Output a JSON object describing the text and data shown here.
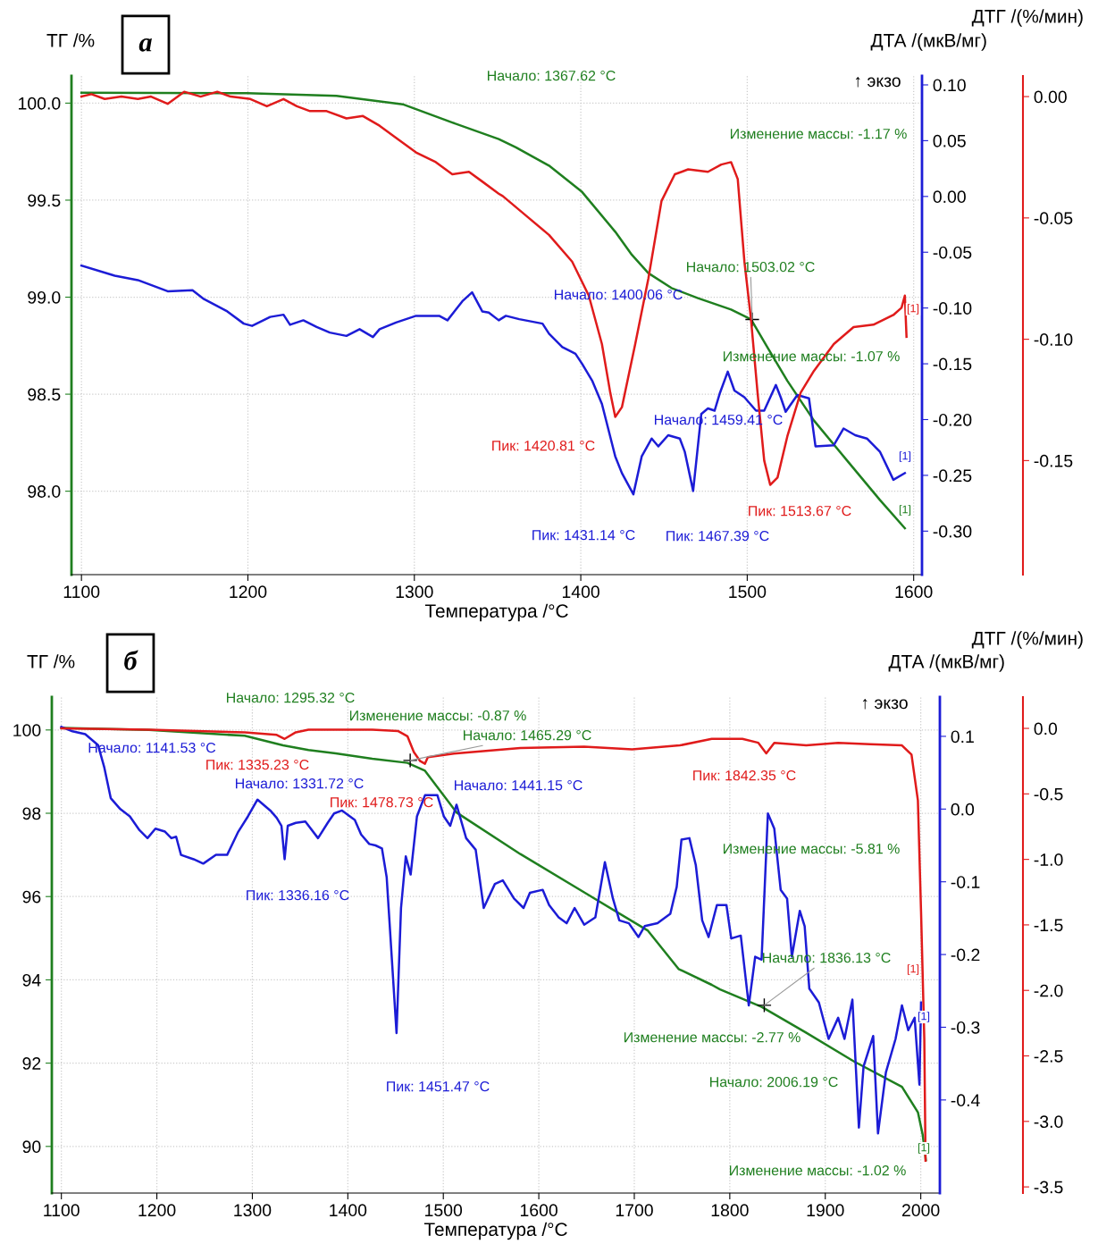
{
  "chart_data": [
    {
      "type": "line",
      "title": "а",
      "xlabel": "Температура /°C",
      "ylabel": "ТГ /%",
      "y2label": "ДТА /(мкВ/мг)",
      "y3label": "ДТГ /(%/мин)",
      "grid": true,
      "xlim": [
        1094,
        1605
      ],
      "xticks": [
        1100,
        1200,
        1300,
        1400,
        1500,
        1600
      ],
      "ylim": [
        97.57,
        100.14
      ],
      "yticks": [
        {
          "value": 98,
          "label": "98.0"
        },
        {
          "value": 98.5,
          "label": "98.5"
        },
        {
          "value": 99,
          "label": "99.0"
        },
        {
          "value": 99.5,
          "label": "99.5"
        },
        {
          "value": 100,
          "label": "100.0"
        }
      ],
      "y2lim": [
        -0.339,
        0.108
      ],
      "y2ticks": [
        {
          "value": -0.3,
          "label": "-0.30"
        },
        {
          "value": -0.25,
          "label": "-0.25"
        },
        {
          "value": -0.2,
          "label": "-0.20"
        },
        {
          "value": -0.15,
          "label": "-0.15"
        },
        {
          "value": -0.1,
          "label": "-0.10"
        },
        {
          "value": -0.05,
          "label": "-0.05"
        },
        {
          "value": 0,
          "label": "0.00"
        },
        {
          "value": 0.05,
          "label": "0.05"
        },
        {
          "value": 0.1,
          "label": "0.10"
        }
      ],
      "y3lim": [
        -0.197,
        0.0085
      ],
      "y3ticks": [
        {
          "value": -0.15,
          "label": "-0.15"
        },
        {
          "value": -0.1,
          "label": "-0.10"
        },
        {
          "value": -0.05,
          "label": "-0.05"
        },
        {
          "value": 0,
          "label": "0.00"
        }
      ],
      "series": [
        {
          "color": "#1f7f1f",
          "x": [
            1100,
            1199.5,
            1253.2,
            1293.0,
            1322.8,
            1350.7,
            1361.0,
            1380.9,
            1400.8,
            1420.7,
            1430.7,
            1440.6,
            1454.5,
            1470.4,
            1490.3,
            1502.3,
            1512.2,
            1524.1,
            1540.1,
            1559.9,
            1579.8,
            1594.7
          ],
          "values": [
            100.054,
            100.051,
            100.037,
            99.994,
            99.9,
            99.815,
            99.772,
            99.678,
            99.542,
            99.337,
            99.218,
            99.124,
            99.047,
            98.995,
            98.936,
            98.885,
            98.74,
            98.569,
            98.364,
            98.159,
            97.954,
            97.809
          ]
        },
        {
          "color": "#1c1cd6",
          "axis": "y2",
          "x": [
            1100,
            1120,
            1133.9,
            1151.8,
            1166.7,
            1173.6,
            1187.6,
            1197.5,
            1202.5,
            1213.4,
            1221.4,
            1225.3,
            1233.3,
            1241.3,
            1249.2,
            1259.2,
            1267.1,
            1275.1,
            1279.1,
            1289.0,
            1301.0,
            1314.9,
            1319.9,
            1328.8,
            1334.7,
            1340.8,
            1344.7,
            1350.7,
            1355.0,
            1363.0,
            1377.0,
            1380.9,
            1388.9,
            1392.9,
            1396.8,
            1400.8,
            1406.8,
            1412.7,
            1420.7,
            1424.7,
            1431.6,
            1436.6,
            1442.6,
            1446.6,
            1452.5,
            1459.5,
            1462.5,
            1467.5,
            1472.4,
            1476.4,
            1480.4,
            1483.4,
            1488.3,
            1492.3,
            1498.3,
            1505.3,
            1510.2,
            1517.2,
            1520.1,
            1523.1,
            1530.1,
            1537.1,
            1541.0,
            1552.0,
            1557.9,
            1564.9,
            1571.9,
            1579.8,
            1587.8,
            1594.7
          ],
          "values": [
            -0.062,
            -0.071,
            -0.075,
            -0.085,
            -0.084,
            -0.092,
            -0.103,
            -0.114,
            -0.116,
            -0.108,
            -0.106,
            -0.115,
            -0.111,
            -0.117,
            -0.122,
            -0.125,
            -0.119,
            -0.126,
            -0.119,
            -0.113,
            -0.107,
            -0.107,
            -0.111,
            -0.094,
            -0.086,
            -0.103,
            -0.104,
            -0.111,
            -0.107,
            -0.11,
            -0.114,
            -0.123,
            -0.135,
            -0.138,
            -0.141,
            -0.15,
            -0.165,
            -0.186,
            -0.233,
            -0.248,
            -0.267,
            -0.233,
            -0.217,
            -0.224,
            -0.214,
            -0.217,
            -0.229,
            -0.264,
            -0.195,
            -0.19,
            -0.192,
            -0.177,
            -0.157,
            -0.174,
            -0.18,
            -0.192,
            -0.192,
            -0.169,
            -0.18,
            -0.193,
            -0.178,
            -0.181,
            -0.224,
            -0.223,
            -0.208,
            -0.214,
            -0.217,
            -0.229,
            -0.254,
            -0.248
          ]
        },
        {
          "color": "#e01b1b",
          "axis": "y3",
          "x": [
            1100,
            1106.0,
            1114.0,
            1124.0,
            1133.9,
            1141.8,
            1151.8,
            1161.7,
            1171.6,
            1181.6,
            1189.6,
            1201.5,
            1211.4,
            1221.4,
            1229.4,
            1237.3,
            1247.3,
            1259.2,
            1269.1,
            1279.1,
            1289.0,
            1301.0,
            1312.9,
            1322.8,
            1332.8,
            1340.8,
            1350.7,
            1353.1,
            1367.0,
            1380.9,
            1394.8,
            1404.8,
            1412.7,
            1417.7,
            1420.7,
            1424.7,
            1432.7,
            1440.6,
            1448.5,
            1456.5,
            1464.5,
            1476.4,
            1484.4,
            1490.3,
            1494.3,
            1498.3,
            1502.3,
            1506.2,
            1510.2,
            1513.8,
            1518.2,
            1524.1,
            1532.1,
            1540.1,
            1552.0,
            1563.9,
            1575.8,
            1587.8,
            1592.7,
            1594.7,
            1595.7
          ],
          "values": [
            0.0,
            0.001,
            -0.001,
            0.0,
            -0.001,
            0.0,
            -0.003,
            0.002,
            0.0,
            0.002,
            0.0,
            -0.001,
            -0.004,
            -0.001,
            -0.004,
            -0.006,
            -0.006,
            -0.009,
            -0.008,
            -0.012,
            -0.017,
            -0.023,
            -0.027,
            -0.032,
            -0.031,
            -0.035,
            -0.04,
            -0.041,
            -0.049,
            -0.057,
            -0.068,
            -0.082,
            -0.102,
            -0.122,
            -0.132,
            -0.128,
            -0.102,
            -0.075,
            -0.043,
            -0.032,
            -0.03,
            -0.031,
            -0.028,
            -0.027,
            -0.034,
            -0.068,
            -0.092,
            -0.122,
            -0.15,
            -0.16,
            -0.157,
            -0.14,
            -0.122,
            -0.113,
            -0.102,
            -0.095,
            -0.094,
            -0.09,
            -0.087,
            -0.082,
            -0.099
          ]
        }
      ],
      "annotations": [
        "Начало: 1367.62 °C",
        "Изменение массы: -1.17 %",
        {
          "text": "Начало: 1503.02 °C",
          "x": 1503.0,
          "y": 98.885
        },
        "Изменение массы: -1.07 %",
        "Начало: 1400.06 °C",
        "Пик: 1431.14 °C",
        "Начало: 1459.41 °C",
        "Пик: 1467.39 °C",
        "Пик: 1420.81 °C",
        "Пик: 1513.67 °C",
        "↑ экзо",
        "[1]",
        "[1]",
        "[1]"
      ]
    },
    {
      "type": "line",
      "title": "б",
      "xlabel": "Температура /°C",
      "ylabel": "ТГ /%",
      "y2label": "ДТА /(мкВ/мг)",
      "y3label": "ДТГ /(%/мин)",
      "grid": true,
      "xlim": [
        1090,
        2020
      ],
      "xticks": [
        1100,
        1200,
        1300,
        1400,
        1500,
        1600,
        1700,
        1800,
        1900,
        2000
      ],
      "ylim": [
        88.88,
        100.79
      ],
      "yticks": [
        90,
        92,
        94,
        96,
        98,
        100
      ],
      "y2lim": [
        -0.528,
        0.154
      ],
      "y2ticks": [
        {
          "value": -0.4,
          "label": "-0.4"
        },
        {
          "value": -0.3,
          "label": "-0.3"
        },
        {
          "value": -0.2,
          "label": "-0.2"
        },
        {
          "value": -0.1,
          "label": "-0.1"
        },
        {
          "value": 0,
          "label": "0.0"
        },
        {
          "value": 0.1,
          "label": "0.1"
        }
      ],
      "y3lim": [
        -3.547,
        0.239
      ],
      "y3ticks": [
        {
          "value": -3.5,
          "label": "-3.5"
        },
        {
          "value": -3,
          "label": "-3.0"
        },
        {
          "value": -2.5,
          "label": "-2.5"
        },
        {
          "value": -2,
          "label": "-2.0"
        },
        {
          "value": -1.5,
          "label": "-1.5"
        },
        {
          "value": -1,
          "label": "-1.0"
        },
        {
          "value": -0.5,
          "label": "-0.5"
        },
        {
          "value": 0,
          "label": "0.0"
        }
      ],
      "series": [
        {
          "color": "#1f7f1f",
          "x": [
            1100,
            1191.8,
            1292.0,
            1332.1,
            1358.8,
            1387.3,
            1425.6,
            1462.4,
            1480.8,
            1513.8,
            1580.7,
            1647.5,
            1714.3,
            1746.4,
            1781.1,
            1789.8,
            1833.3,
            1880.1,
            1930.1,
            1980.3,
            1997.0,
            2002.0,
            2005.3
          ],
          "values": [
            100.05,
            100.0,
            99.86,
            99.63,
            99.52,
            99.44,
            99.31,
            99.21,
            99.02,
            98.02,
            97.02,
            96.1,
            95.18,
            94.26,
            93.88,
            93.77,
            93.35,
            92.73,
            92.04,
            91.43,
            90.82,
            90.28,
            89.67
          ]
        },
        {
          "color": "#1c1cd6",
          "axis": "y2",
          "x": [
            1100,
            1111.6,
            1125.0,
            1138.4,
            1145.0,
            1151.7,
            1161.7,
            1171.7,
            1181.8,
            1190.2,
            1198.5,
            1208.5,
            1215.2,
            1220.2,
            1225.3,
            1238.5,
            1248.6,
            1261.9,
            1273.6,
            1285.3,
            1295.4,
            1305.4,
            1318.8,
            1325.5,
            1330.5,
            1333.8,
            1337.1,
            1345.5,
            1355.5,
            1368.8,
            1378.9,
            1385.6,
            1393.9,
            1407.3,
            1413.9,
            1422.4,
            1429.0,
            1435.7,
            1440.7,
            1451.0,
            1455.7,
            1460.7,
            1465.8,
            1472.4,
            1480.8,
            1493.8,
            1500.5,
            1507.2,
            1513.8,
            1523.9,
            1533.9,
            1542.3,
            1554.0,
            1562.3,
            1574.0,
            1584.0,
            1590.7,
            1604.1,
            1610.8,
            1620.8,
            1629.1,
            1637.5,
            1647.5,
            1659.2,
            1669.2,
            1677.6,
            1684.3,
            1694.3,
            1704.3,
            1710.9,
            1724.3,
            1737.7,
            1744.4,
            1749.4,
            1757.7,
            1764.4,
            1771.1,
            1777.8,
            1786.5,
            1796.5,
            1801.5,
            1811.5,
            1819.9,
            1826.6,
            1833.3,
            1839.9,
            1846.6,
            1853.3,
            1860.0,
            1865.0,
            1873.3,
            1878.4,
            1883.3,
            1893.3,
            1903.5,
            1913.5,
            1920.1,
            1928.4,
            1935.2,
            1940.1,
            1950.2,
            1955.2,
            1963.5,
            1973.6,
            1980.3,
            1986.9,
            1993.6,
            1998.6,
            2000.3
          ],
          "values": [
            0.113,
            0.107,
            0.103,
            0.088,
            0.057,
            0.015,
            0.0,
            -0.01,
            -0.029,
            -0.04,
            -0.027,
            -0.031,
            -0.04,
            -0.038,
            -0.063,
            -0.069,
            -0.075,
            -0.063,
            -0.063,
            -0.031,
            -0.01,
            0.013,
            -0.002,
            -0.012,
            -0.023,
            -0.069,
            -0.023,
            -0.019,
            -0.017,
            -0.04,
            -0.019,
            -0.006,
            -0.002,
            -0.015,
            -0.035,
            -0.048,
            -0.05,
            -0.054,
            -0.094,
            -0.308,
            -0.136,
            -0.065,
            -0.09,
            -0.01,
            0.019,
            0.019,
            -0.01,
            -0.023,
            0.006,
            -0.04,
            -0.056,
            -0.136,
            -0.103,
            -0.098,
            -0.123,
            -0.136,
            -0.115,
            -0.111,
            -0.132,
            -0.149,
            -0.157,
            -0.136,
            -0.159,
            -0.149,
            -0.073,
            -0.123,
            -0.153,
            -0.157,
            -0.176,
            -0.161,
            -0.157,
            -0.144,
            -0.107,
            -0.042,
            -0.04,
            -0.077,
            -0.153,
            -0.176,
            -0.132,
            -0.132,
            -0.178,
            -0.174,
            -0.27,
            -0.203,
            -0.207,
            -0.006,
            -0.027,
            -0.111,
            -0.123,
            -0.203,
            -0.14,
            -0.161,
            -0.247,
            -0.266,
            -0.316,
            -0.287,
            -0.316,
            -0.262,
            -0.438,
            -0.354,
            -0.312,
            -0.446,
            -0.362,
            -0.316,
            -0.27,
            -0.304,
            -0.287,
            -0.379,
            -0.266
          ]
        },
        {
          "color": "#e01b1b",
          "axis": "y3",
          "x": [
            1100,
            1191.8,
            1292.0,
            1325.5,
            1333.8,
            1345.5,
            1358.8,
            1425.6,
            1452.4,
            1462.4,
            1469.1,
            1475.8,
            1480.8,
            1483.8,
            1513.8,
            1580.7,
            1647.5,
            1697.7,
            1747.7,
            1781.1,
            1813.2,
            1829.9,
            1838.2,
            1846.6,
            1880.1,
            1913.5,
            1946.9,
            1980.3,
            1990.3,
            1997.0,
            2000.3,
            2003.7,
            2005.0
          ],
          "values": [
            0.0,
            -0.01,
            -0.03,
            -0.05,
            -0.08,
            -0.03,
            -0.01,
            -0.01,
            -0.02,
            -0.06,
            -0.18,
            -0.25,
            -0.27,
            -0.22,
            -0.19,
            -0.15,
            -0.14,
            -0.16,
            -0.13,
            -0.08,
            -0.08,
            -0.11,
            -0.19,
            -0.11,
            -0.13,
            -0.11,
            -0.12,
            -0.13,
            -0.2,
            -0.55,
            -1.4,
            -2.37,
            -3.3
          ]
        }
      ],
      "annotations": [
        "Начало: 1295.32 °C",
        "Изменение массы: -0.87 %",
        {
          "text": "Начало: 1465.29 °C",
          "x": 1465.3,
          "y": 99.27
        },
        "Изменение массы: -5.81 %",
        {
          "text": "Начало: 1836.13 °C",
          "x": 1836.1,
          "y": 93.39
        },
        "Изменение массы: -2.77 %",
        "Начало: 2006.19 °C",
        "Изменение массы: -1.02 %",
        "Начало: 1141.53 °C",
        "Начало: 1331.72 °C",
        "Пик: 1336.16 °C",
        "Начало: 1441.15 °C",
        "Пик: 1451.47 °C",
        "Пик: 1335.23 °C",
        "Пик: 1478.73 °C",
        "Пик: 1842.35 °C",
        "↑ экзо",
        "[1]",
        "[1]",
        "[1]"
      ]
    }
  ]
}
